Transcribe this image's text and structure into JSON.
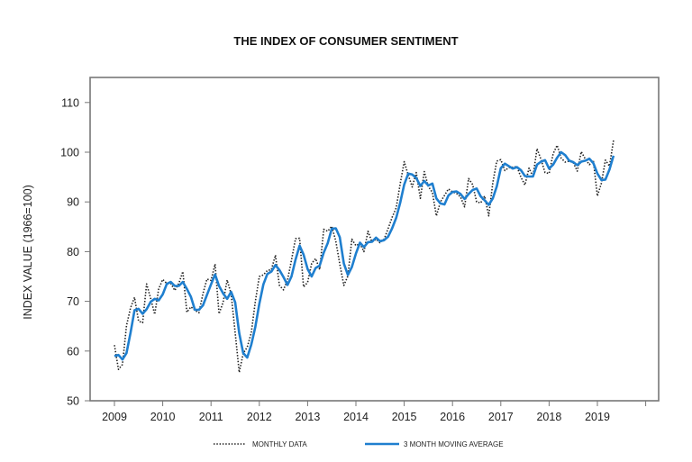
{
  "chart_data": {
    "type": "line",
    "title": "THE INDEX OF CONSUMER SENTIMENT",
    "xlabel": "",
    "ylabel": "INDEX VALUE (1966=100)",
    "ylim": [
      50,
      110
    ],
    "yticks": [
      50,
      60,
      70,
      80,
      90,
      100,
      110
    ],
    "xlim": [
      2009,
      2020
    ],
    "xticks": [
      "2009",
      "2010",
      "2011",
      "2012",
      "2013",
      "2014",
      "2015",
      "2016",
      "2017",
      "2018",
      "2019"
    ],
    "grid": false,
    "legend": "bottom",
    "start": "2009-01",
    "series": [
      {
        "name": "MONTHLY DATA",
        "style": "dotted",
        "color": "#222222",
        "values": [
          61.2,
          56.3,
          57.3,
          65.1,
          68.7,
          70.8,
          66.0,
          65.7,
          73.5,
          70.6,
          67.4,
          72.5,
          74.4,
          73.6,
          73.6,
          72.2,
          73.6,
          76.0,
          67.8,
          68.9,
          68.2,
          67.7,
          71.6,
          74.5,
          74.2,
          77.5,
          67.5,
          69.8,
          74.3,
          71.5,
          63.7,
          55.7,
          59.5,
          60.8,
          63.7,
          69.9,
          75.0,
          75.3,
          76.2,
          76.4,
          79.3,
          73.2,
          72.3,
          74.3,
          78.3,
          82.6,
          82.7,
          72.9,
          73.8,
          77.6,
          78.6,
          76.4,
          84.5,
          84.1,
          85.1,
          82.1,
          77.5,
          73.2,
          75.1,
          82.5,
          81.2,
          81.6,
          80.0,
          84.1,
          81.9,
          82.5,
          81.8,
          82.5,
          84.6,
          86.9,
          88.8,
          93.6,
          98.1,
          95.4,
          93.0,
          95.9,
          90.7,
          96.1,
          93.1,
          91.9,
          87.2,
          90.0,
          91.3,
          92.6,
          92.0,
          91.7,
          91.0,
          89.0,
          94.7,
          93.5,
          90.0,
          89.8,
          91.2,
          87.2,
          93.8,
          98.2,
          98.5,
          96.3,
          96.9,
          97.0,
          97.1,
          95.0,
          93.4,
          96.8,
          95.1,
          100.7,
          98.5,
          95.9,
          95.7,
          99.7,
          101.4,
          98.8,
          98.0,
          98.2,
          97.9,
          96.2,
          100.1,
          98.6,
          97.5,
          98.3,
          91.2,
          93.8,
          98.4,
          97.2,
          102.4
        ]
      },
      {
        "name": "3 MONTH MOVING AVERAGE",
        "style": "solid",
        "color": "#1f7fcf",
        "values": [
          59.0,
          59.2,
          58.3,
          59.6,
          63.7,
          68.2,
          68.5,
          67.5,
          68.4,
          69.9,
          70.5,
          70.2,
          71.4,
          73.5,
          73.9,
          73.1,
          73.1,
          73.9,
          72.5,
          70.9,
          68.3,
          68.3,
          69.2,
          71.3,
          73.4,
          75.4,
          73.1,
          71.6,
          70.5,
          71.9,
          69.8,
          63.6,
          59.6,
          58.7,
          61.3,
          64.8,
          69.5,
          73.4,
          75.5,
          76.0,
          77.3,
          76.3,
          74.9,
          73.3,
          75.0,
          78.4,
          81.2,
          79.4,
          76.5,
          75.0,
          76.7,
          77.2,
          79.8,
          81.7,
          84.6,
          84.7,
          82.9,
          77.6,
          75.3,
          76.9,
          79.6,
          81.8,
          80.9,
          81.9,
          82.0,
          82.8,
          82.1,
          82.3,
          83.0,
          84.7,
          86.8,
          89.8,
          93.5,
          95.7,
          95.5,
          94.8,
          93.2,
          94.2,
          93.3,
          93.7,
          90.7,
          89.7,
          89.5,
          91.3,
          92.0,
          92.1,
          91.6,
          90.6,
          91.6,
          92.4,
          92.7,
          91.1,
          90.3,
          89.4,
          90.7,
          93.1,
          96.8,
          97.7,
          97.2,
          96.7,
          97.0,
          96.4,
          95.2,
          95.1,
          95.1,
          97.5,
          98.1,
          98.4,
          96.7,
          97.5,
          98.9,
          100.0,
          99.4,
          98.3,
          98.0,
          97.4,
          98.1,
          98.3,
          98.7,
          97.8,
          95.7,
          94.4,
          94.5,
          96.5,
          99.3
        ]
      }
    ]
  }
}
